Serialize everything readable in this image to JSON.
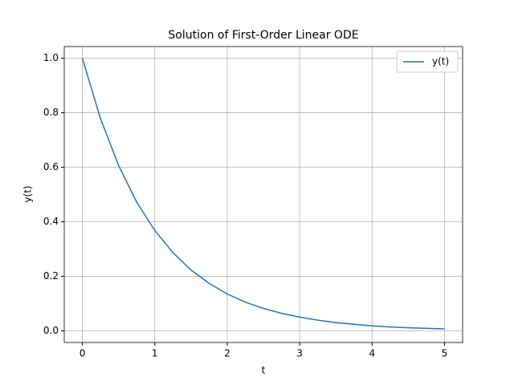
{
  "chart_data": {
    "type": "line",
    "title": "Solution of First-Order Linear ODE",
    "x_label": "t",
    "y_label": "y(t)",
    "x": [
      0,
      0.25,
      0.5,
      0.75,
      1,
      1.25,
      1.5,
      1.75,
      2,
      2.25,
      2.5,
      2.75,
      3,
      3.25,
      3.5,
      3.75,
      4,
      4.25,
      4.5,
      4.75,
      5
    ],
    "series": [
      {
        "name": "y(t)",
        "color": "#1f77b4",
        "values": [
          1,
          0.779,
          0.607,
          0.472,
          0.368,
          0.287,
          0.223,
          0.174,
          0.135,
          0.105,
          0.082,
          0.064,
          0.05,
          0.039,
          0.03,
          0.024,
          0.018,
          0.014,
          0.011,
          0.009,
          0.007
        ]
      }
    ],
    "xlim": [
      -0.25,
      5.25
    ],
    "xticks": [
      0,
      1,
      2,
      3,
      4,
      5
    ],
    "ylim": [
      -0.043,
      1.043
    ],
    "yticks": [
      {
        "value": 0,
        "label": "0.0"
      },
      {
        "value": 0.2,
        "label": "0.2"
      },
      {
        "value": 0.4,
        "label": "0.4"
      },
      {
        "value": 0.6,
        "label": "0.6"
      },
      {
        "value": 0.8,
        "label": "0.8"
      },
      {
        "value": 1,
        "label": "1.0"
      }
    ],
    "grid": true,
    "legend": "upper right"
  }
}
